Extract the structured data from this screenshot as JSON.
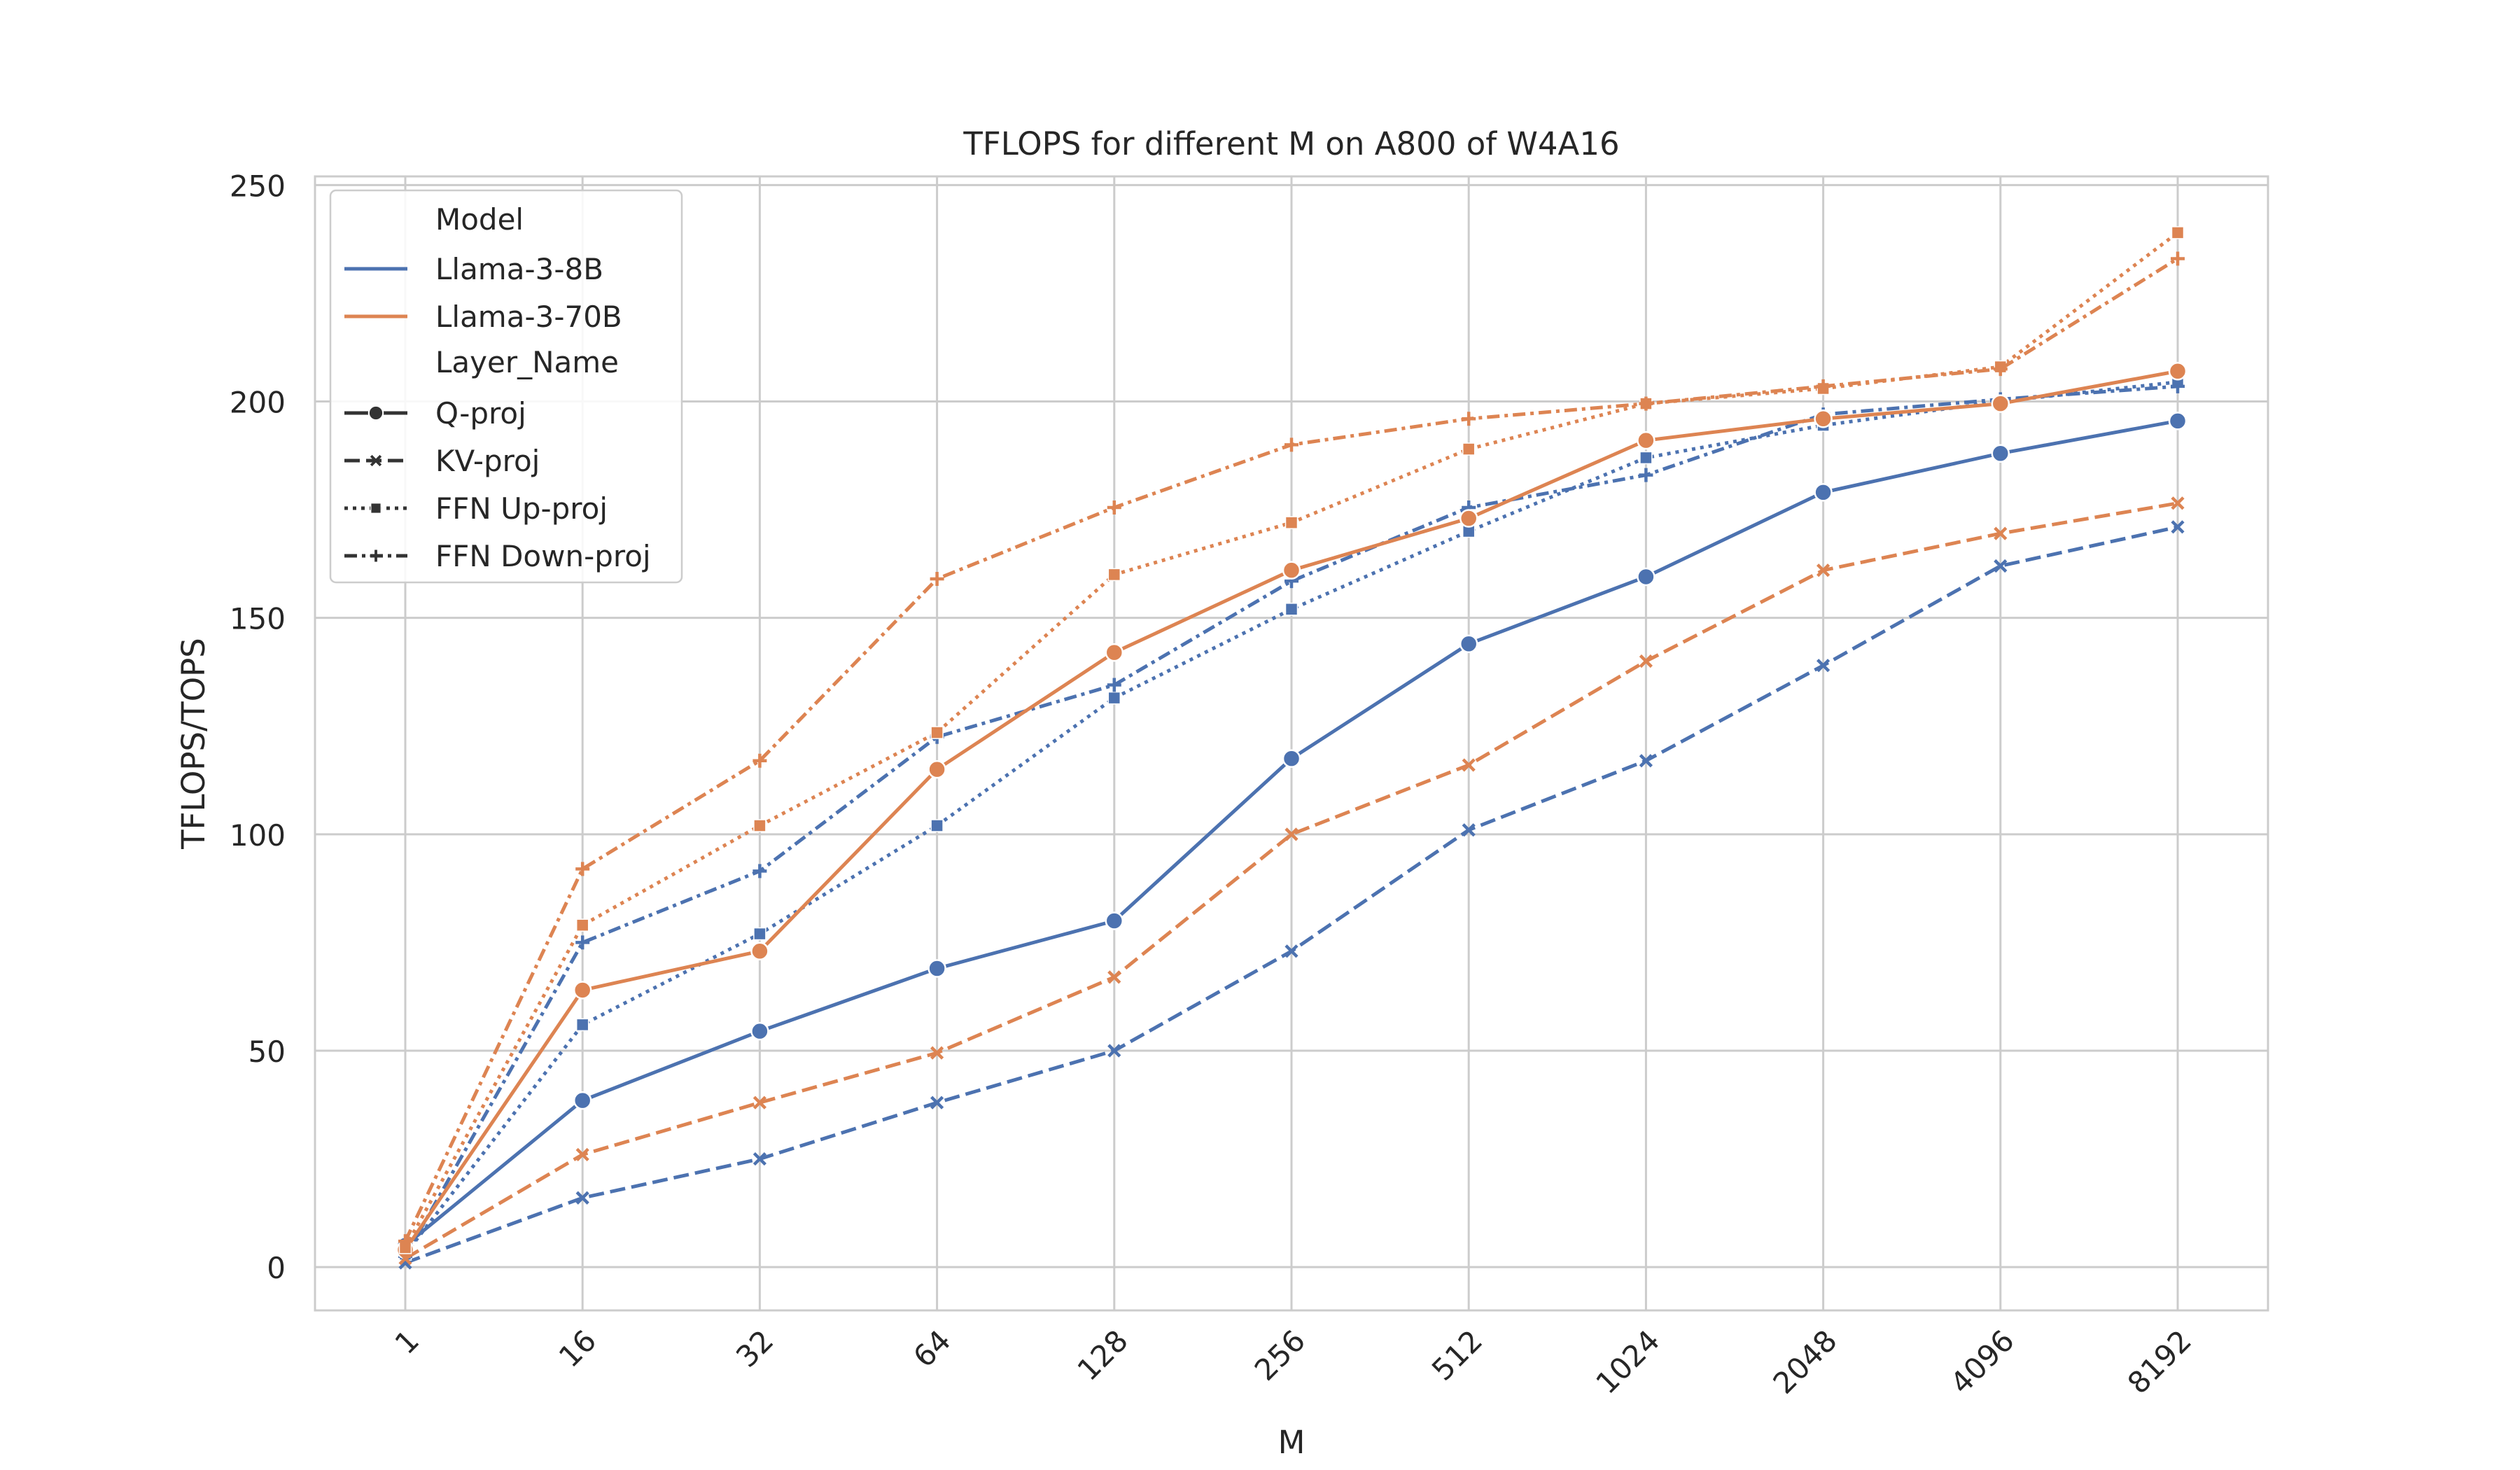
{
  "chart_data": {
    "type": "line",
    "title": "TFLOPS for different M on A800 of W4A16",
    "xlabel": "M",
    "ylabel": "TFLOPS/TOPS",
    "categories": [
      "1",
      "16",
      "32",
      "64",
      "128",
      "256",
      "512",
      "1024",
      "2048",
      "4096",
      "8192"
    ],
    "ylim": [
      -10,
      252
    ],
    "yticks": [
      0,
      50,
      100,
      150,
      200,
      250
    ],
    "grid": true,
    "legend": {
      "placement": "top-left",
      "model_title": "Model",
      "layer_title": "Layer_Name",
      "models": [
        {
          "name": "Llama-3-8B",
          "color": "#4c72b0"
        },
        {
          "name": "Llama-3-70B",
          "color": "#dd8452"
        }
      ],
      "layers": [
        {
          "name": "Q-proj",
          "dash": "solid",
          "marker": "circle"
        },
        {
          "name": "KV-proj",
          "dash": "dashed",
          "marker": "x"
        },
        {
          "name": "FFN Up-proj",
          "dash": "dotted",
          "marker": "square"
        },
        {
          "name": "FFN Down-proj",
          "dash": "dashdot",
          "marker": "plus"
        }
      ]
    },
    "series": [
      {
        "model": "Llama-3-8B",
        "layer": "Q-proj",
        "values": [
          5,
          38.5,
          54.5,
          69,
          80,
          117.5,
          144,
          159.5,
          179,
          188,
          195.5
        ]
      },
      {
        "model": "Llama-3-8B",
        "layer": "KV-proj",
        "values": [
          1,
          16,
          25,
          38,
          50,
          73,
          101,
          117,
          139,
          162,
          171
        ]
      },
      {
        "model": "Llama-3-8B",
        "layer": "FFN Up-proj",
        "values": [
          3,
          56,
          77,
          102,
          131.5,
          152,
          170,
          187,
          194.5,
          200,
          204.5
        ]
      },
      {
        "model": "Llama-3-8B",
        "layer": "FFN Down-proj",
        "values": [
          2.5,
          75,
          91.5,
          122.5,
          134.5,
          158.5,
          175.5,
          183,
          197,
          200.5,
          203.5
        ]
      },
      {
        "model": "Llama-3-70B",
        "layer": "Q-proj",
        "values": [
          4,
          64,
          73,
          115,
          142,
          161,
          173,
          191,
          196,
          199.5,
          207
        ]
      },
      {
        "model": "Llama-3-70B",
        "layer": "KV-proj",
        "values": [
          2,
          26,
          38,
          49.5,
          67,
          100,
          116,
          140,
          161,
          169.5,
          176.5
        ]
      },
      {
        "model": "Llama-3-70B",
        "layer": "FFN Up-proj",
        "values": [
          4.5,
          79,
          102,
          123.5,
          160,
          172,
          189,
          199.5,
          203,
          208,
          239
        ]
      },
      {
        "model": "Llama-3-70B",
        "layer": "FFN Down-proj",
        "values": [
          6,
          92,
          117,
          159,
          175.5,
          190,
          196,
          199.5,
          203.5,
          207.5,
          233
        ]
      }
    ]
  }
}
